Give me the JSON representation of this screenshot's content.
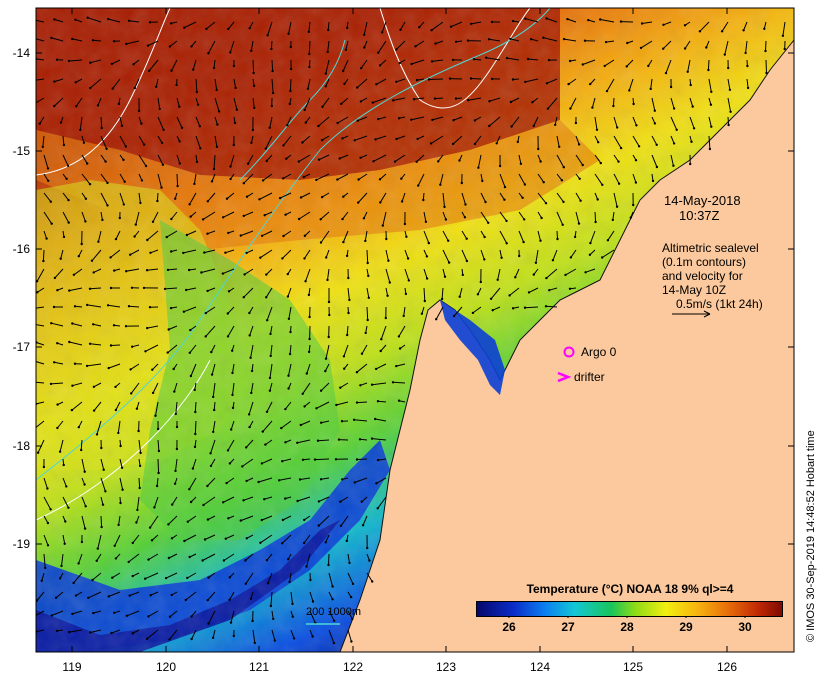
{
  "map": {
    "date": "14-May-2018",
    "time": "10:37Z",
    "legend_lines": [
      "Altimetric sealevel",
      "(0.1m contours)",
      "and velocity for",
      "14-May 10Z",
      "0.5m/s (1kt 24h)"
    ],
    "argo_label": "Argo 0",
    "drifter_label": "drifter",
    "scale_label": "200  1000m",
    "credit": "© IMOS 30-Sep-2019 14:48:52 Hobart time",
    "colorbar": {
      "title": "Temperature (°C) NOAA 18 9% ql>=4",
      "ticks": [
        "26",
        "27",
        "28",
        "29",
        "30"
      ],
      "range": [
        25.4,
        30.6
      ]
    },
    "axes": {
      "lon_ticks": [
        "119",
        "120",
        "121",
        "122",
        "123",
        "124",
        "125",
        "126"
      ],
      "lat_ticks": [
        "-14",
        "-15",
        "-16",
        "-17",
        "-18",
        "-19"
      ]
    },
    "colors": {
      "land": "#fbc99d",
      "hot": "#a31c04",
      "warm": "#f08a10",
      "mid": "#f2e313",
      "cool": "#3fcf45",
      "cold": "#0b3fd6",
      "marker_magenta": "#ff00ff",
      "contour_cyan": "#4fd6d6"
    }
  }
}
